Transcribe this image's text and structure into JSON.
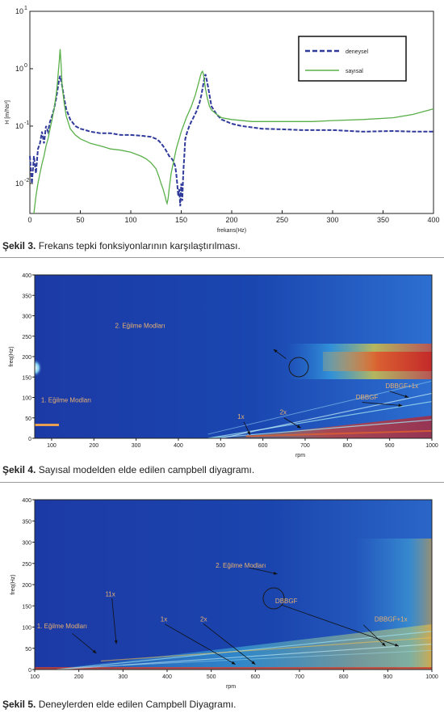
{
  "figure3": {
    "caption_number": "Şekil 3.",
    "caption_text": "Frekans tepki fonksiyonlarının karşılaştırılması.",
    "chart_data": {
      "type": "line",
      "xlabel": "frekans(Hz)",
      "ylabel": "H [m/Ns²]",
      "xlim": [
        0,
        400
      ],
      "ylim": [
        0.003,
        10
      ],
      "yscale": "log",
      "xticks": [
        "0",
        "50",
        "100",
        "150",
        "200",
        "250",
        "300",
        "350",
        "400"
      ],
      "yticks": [
        {
          "base": "10",
          "exp": "1"
        },
        {
          "base": "10",
          "exp": "0"
        },
        {
          "base": "10",
          "exp": "-1"
        },
        {
          "base": "10",
          "exp": "-2"
        }
      ],
      "legend_position": "top-right",
      "series": [
        {
          "name": "deneysel",
          "color": "#2f3a9a",
          "style": "dashed",
          "x": [
            0,
            2,
            4,
            6,
            8,
            10,
            12,
            14,
            16,
            18,
            20,
            22,
            24,
            26,
            28,
            29,
            30,
            32,
            34,
            36,
            40,
            45,
            50,
            55,
            60,
            70,
            80,
            90,
            100,
            110,
            120,
            125,
            128,
            130,
            132,
            134,
            136,
            138,
            140,
            142,
            144,
            145,
            146,
            147,
            148,
            149,
            150,
            151,
            152,
            153,
            154,
            156,
            158,
            160,
            162,
            165,
            168,
            170,
            172,
            173,
            174,
            176,
            178,
            180,
            185,
            190,
            200,
            210,
            220,
            230,
            250,
            270,
            300,
            330,
            360,
            380,
            400
          ],
          "y": [
            0.03,
            0.01,
            0.03,
            0.015,
            0.04,
            0.05,
            0.08,
            0.05,
            0.1,
            0.08,
            0.12,
            0.15,
            0.2,
            0.3,
            0.5,
            0.65,
            0.75,
            0.5,
            0.3,
            0.2,
            0.13,
            0.1,
            0.09,
            0.085,
            0.08,
            0.075,
            0.075,
            0.07,
            0.07,
            0.068,
            0.065,
            0.06,
            0.055,
            0.05,
            0.045,
            0.04,
            0.035,
            0.03,
            0.028,
            0.025,
            0.02,
            0.015,
            0.01,
            0.006,
            0.008,
            0.004,
            0.01,
            0.005,
            0.015,
            0.03,
            0.06,
            0.08,
            0.1,
            0.12,
            0.14,
            0.18,
            0.25,
            0.35,
            0.55,
            0.7,
            0.8,
            0.55,
            0.35,
            0.22,
            0.16,
            0.13,
            0.11,
            0.1,
            0.095,
            0.09,
            0.088,
            0.085,
            0.085,
            0.08,
            0.082,
            0.08,
            0.08
          ]
        },
        {
          "name": "sayısal",
          "color": "#5ab04a",
          "style": "solid",
          "x": [
            4,
            6,
            8,
            10,
            12,
            14,
            16,
            18,
            20,
            22,
            24,
            26,
            27,
            28,
            29,
            30,
            31,
            32,
            34,
            36,
            40,
            45,
            50,
            60,
            70,
            80,
            90,
            100,
            110,
            115,
            120,
            125,
            128,
            130,
            132,
            134,
            135,
            136,
            137,
            138,
            140,
            145,
            150,
            155,
            160,
            164,
            167,
            169,
            170,
            171,
            172,
            173,
            174,
            176,
            178,
            180,
            185,
            190,
            200,
            220,
            250,
            280,
            300,
            330,
            360,
            380,
            400
          ],
          "y": [
            0.003,
            0.006,
            0.01,
            0.015,
            0.022,
            0.03,
            0.045,
            0.06,
            0.09,
            0.13,
            0.2,
            0.35,
            0.5,
            0.8,
            1.3,
            2.2,
            1.1,
            0.5,
            0.25,
            0.15,
            0.09,
            0.07,
            0.06,
            0.05,
            0.045,
            0.04,
            0.038,
            0.035,
            0.03,
            0.027,
            0.023,
            0.018,
            0.013,
            0.01,
            0.008,
            0.006,
            0.005,
            0.0045,
            0.0055,
            0.008,
            0.015,
            0.04,
            0.08,
            0.14,
            0.22,
            0.35,
            0.55,
            0.75,
            0.85,
            0.9,
            0.8,
            0.6,
            0.45,
            0.3,
            0.22,
            0.19,
            0.16,
            0.14,
            0.13,
            0.12,
            0.12,
            0.12,
            0.125,
            0.13,
            0.14,
            0.16,
            0.2
          ]
        }
      ]
    }
  },
  "figure4": {
    "caption_number": "Şekil 4.",
    "caption_text": "Sayısal modelden elde edilen campbell diyagramı.",
    "chart_data": {
      "type": "heatmap",
      "xlabel": "rpm",
      "ylabel": "freq(Hz)",
      "xlim": [
        60,
        1000
      ],
      "ylim": [
        0,
        400
      ],
      "xticks": [
        100,
        200,
        300,
        400,
        500,
        600,
        700,
        800,
        900,
        1000
      ],
      "yticks": [
        0,
        50,
        100,
        150,
        200,
        250,
        300,
        350,
        400
      ],
      "annotations": [
        {
          "text": "2. Eğilme Modları",
          "x": 250,
          "y": 270
        },
        {
          "text": "1. Eğilme Modları",
          "x": 75,
          "y": 88
        },
        {
          "text": "DBBGF+1x",
          "x": 890,
          "y": 123
        },
        {
          "text": "DBBGF",
          "x": 820,
          "y": 95
        },
        {
          "text": "1x",
          "x": 540,
          "y": 48
        },
        {
          "text": "2x",
          "x": 640,
          "y": 58
        }
      ]
    }
  },
  "figure5": {
    "caption_number": "Şekil 5.",
    "caption_text": "Deneylerden elde edilen Campbell Diyagramı.",
    "chart_data": {
      "type": "heatmap",
      "xlabel": "rpm",
      "ylabel": "freq(Hz)",
      "xlim": [
        100,
        1000
      ],
      "ylim": [
        0,
        400
      ],
      "xticks": [
        100,
        200,
        300,
        400,
        500,
        600,
        700,
        800,
        900,
        1000
      ],
      "yticks": [
        0,
        50,
        100,
        150,
        200,
        250,
        300,
        350,
        400
      ],
      "annotations": [
        {
          "text": "2. Eğilme Modları",
          "x": 510,
          "y": 240
        },
        {
          "text": "11x",
          "x": 260,
          "y": 172
        },
        {
          "text": "1. Eğilme Modları",
          "x": 105,
          "y": 97
        },
        {
          "text": "DBBGF",
          "x": 645,
          "y": 156
        },
        {
          "text": "1x",
          "x": 385,
          "y": 113
        },
        {
          "text": "2x",
          "x": 475,
          "y": 113
        },
        {
          "text": "DBBGF+1x",
          "x": 870,
          "y": 113
        }
      ]
    }
  }
}
